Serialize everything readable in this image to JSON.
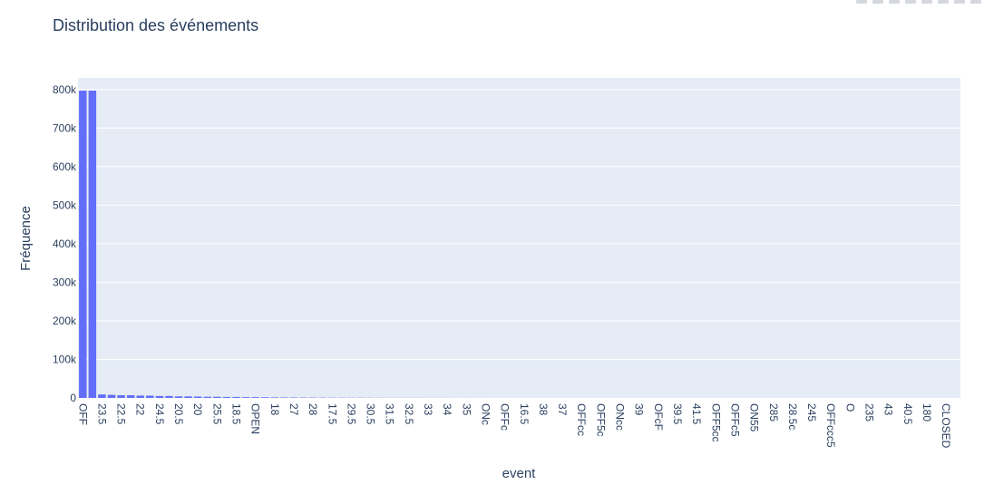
{
  "chart_data": {
    "type": "bar",
    "title": "Distribution des événements",
    "xlabel": "event",
    "ylabel": "Fréquence",
    "ylim": [
      0,
      830000
    ],
    "y_ticks": [
      0,
      100000,
      200000,
      300000,
      400000,
      500000,
      600000,
      700000,
      800000
    ],
    "y_tick_labels": [
      "0",
      "100k",
      "200k",
      "300k",
      "400k",
      "500k",
      "600k",
      "700k",
      "800k"
    ],
    "x_tick_labels": [
      "OFF",
      "23.5",
      "22.5",
      "22",
      "24.5",
      "20.5",
      "20",
      "25.5",
      "18.5",
      "OPEN",
      "18",
      "27",
      "28",
      "17.5",
      "29.5",
      "30.5",
      "31.5",
      "32.5",
      "33",
      "34",
      "35",
      "ONc",
      "OFFc",
      "16.5",
      "38",
      "37",
      "OFFcc",
      "OFF5c",
      "ONcc",
      "39",
      "OFcF",
      "39.5",
      "41.5",
      "OFF5cc",
      "OFFc5",
      "ON55",
      "285",
      "28.5c",
      "245",
      "OFFccc5",
      "O",
      "235",
      "43",
      "40.5",
      "180",
      "CLOSED"
    ],
    "tick_every": 2,
    "num_categories": 92,
    "values": [
      797000,
      797000,
      9000,
      8000,
      7000,
      7000,
      6000,
      6000,
      5000,
      5000,
      4000,
      4000,
      3500,
      3000,
      3000,
      2500,
      2500,
      2000,
      2000,
      1800,
      1500,
      1300,
      1100,
      1000,
      900,
      800,
      700,
      600,
      500,
      450,
      400,
      350,
      300,
      250,
      200,
      180,
      150,
      120,
      100,
      80,
      60,
      50,
      40,
      30,
      25,
      20,
      15,
      12,
      10,
      8,
      6,
      5,
      4,
      3,
      3,
      2,
      2,
      2,
      1,
      1,
      1,
      1,
      1,
      1,
      1,
      1,
      1,
      1,
      1,
      1,
      1,
      1,
      1,
      1,
      1,
      1,
      1,
      1,
      1,
      1,
      1,
      1,
      1,
      1,
      1,
      1,
      1,
      1,
      1,
      1,
      1,
      1
    ],
    "bar_color": "#636efa",
    "plot_bg": "#e5ecf6",
    "grid": true
  }
}
